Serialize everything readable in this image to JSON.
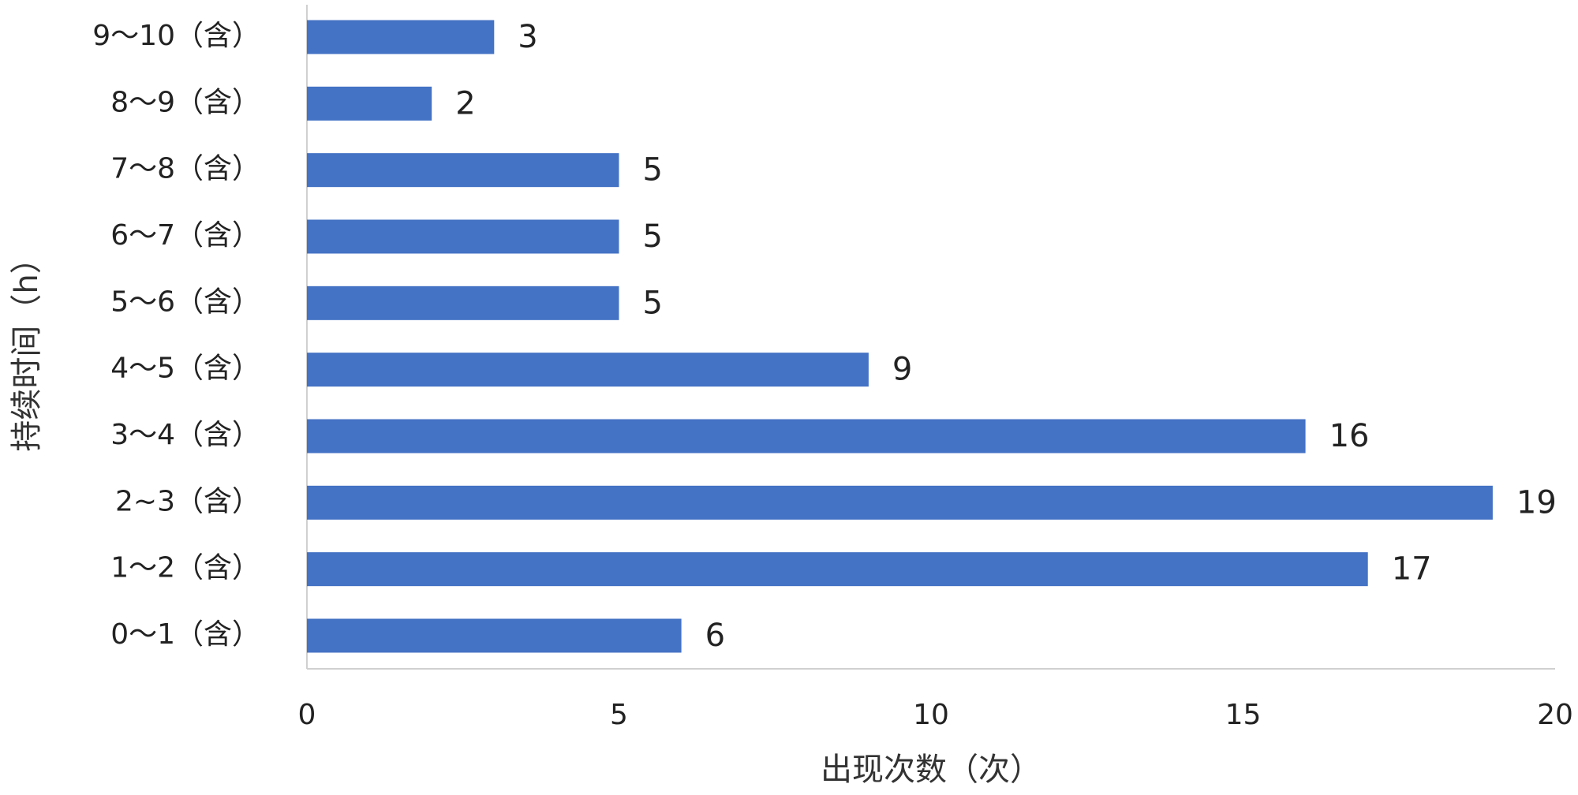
{
  "chart_data": {
    "type": "barh",
    "x_label": "出现次数（次）",
    "y_label": "持续时间（h）",
    "categories": [
      "0～1（含）",
      "1～2（含）",
      "2~3（含）",
      "3～4（含）",
      "4～5（含）",
      "5～6（含）",
      "6～7（含）",
      "7～8（含）",
      "8～9（含）",
      "9～10（含）"
    ],
    "values": [
      6,
      17,
      19,
      16,
      9,
      5,
      5,
      5,
      2,
      3
    ],
    "color": "#4472c4",
    "xlim": [
      0,
      20
    ],
    "xticks": [
      0,
      5,
      10,
      15,
      20
    ]
  }
}
